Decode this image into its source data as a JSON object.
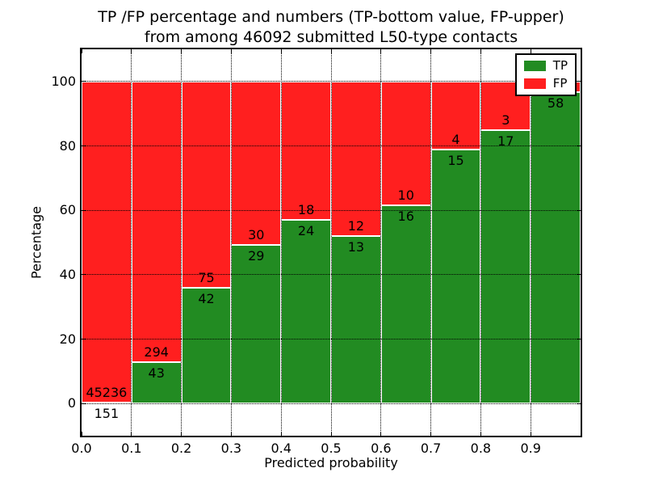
{
  "title_line1": "TP /FP percentage and numbers (TP-bottom value, FP-upper)",
  "title_line2": "from among 46092 submitted L50-type contacts",
  "legend": {
    "items": [
      {
        "label": "TP",
        "color": "#228B22"
      },
      {
        "label": "FP",
        "color": "#ff1f1f"
      }
    ]
  },
  "chart_data": {
    "type": "bar",
    "stacked": true,
    "title": "TP /FP percentage and numbers (TP-bottom value, FP-upper) from among 46092 submitted L50-type contacts",
    "xlabel": "Predicted probability",
    "ylabel": "Percentage",
    "xlim": [
      0.0,
      1.0
    ],
    "ylim": [
      -10,
      110
    ],
    "grid": true,
    "legend_position": "upper right",
    "colors": {
      "tp": "#228B22",
      "fp": "#ff1f1f",
      "bar_edge": "#ffffff",
      "grid": "#000000"
    },
    "yticks": [
      0,
      20,
      40,
      60,
      80,
      100
    ],
    "xtick_labels": [
      "0.0",
      "0.1",
      "0.2",
      "0.3",
      "0.4",
      "0.5",
      "0.6",
      "0.7",
      "0.8",
      "0.9"
    ],
    "series": [
      {
        "name": "TP",
        "role": "bottom"
      },
      {
        "name": "FP",
        "role": "upper"
      }
    ],
    "bars": [
      {
        "x0": 0.0,
        "x1": 0.1,
        "tp_count": "151",
        "fp_count": "45236",
        "tp_pct": 0.33
      },
      {
        "x0": 0.1,
        "x1": 0.2,
        "tp_count": "43",
        "fp_count": "294",
        "tp_pct": 12.76
      },
      {
        "x0": 0.2,
        "x1": 0.3,
        "tp_count": "42",
        "fp_count": "75",
        "tp_pct": 35.9
      },
      {
        "x0": 0.3,
        "x1": 0.4,
        "tp_count": "29",
        "fp_count": "30",
        "tp_pct": 49.15
      },
      {
        "x0": 0.4,
        "x1": 0.5,
        "tp_count": "24",
        "fp_count": "18",
        "tp_pct": 57.14
      },
      {
        "x0": 0.5,
        "x1": 0.6,
        "tp_count": "13",
        "fp_count": "12",
        "tp_pct": 52.0
      },
      {
        "x0": 0.6,
        "x1": 0.7,
        "tp_count": "16",
        "fp_count": "10",
        "tp_pct": 61.54
      },
      {
        "x0": 0.7,
        "x1": 0.8,
        "tp_count": "15",
        "fp_count": "4",
        "tp_pct": 78.95
      },
      {
        "x0": 0.8,
        "x1": 0.9,
        "tp_count": "17",
        "fp_count": "3",
        "tp_pct": 85.0
      },
      {
        "x0": 0.9,
        "x1": 1.0,
        "tp_count": "58",
        "fp_count": null,
        "tp_pct": 96.67
      }
    ]
  }
}
